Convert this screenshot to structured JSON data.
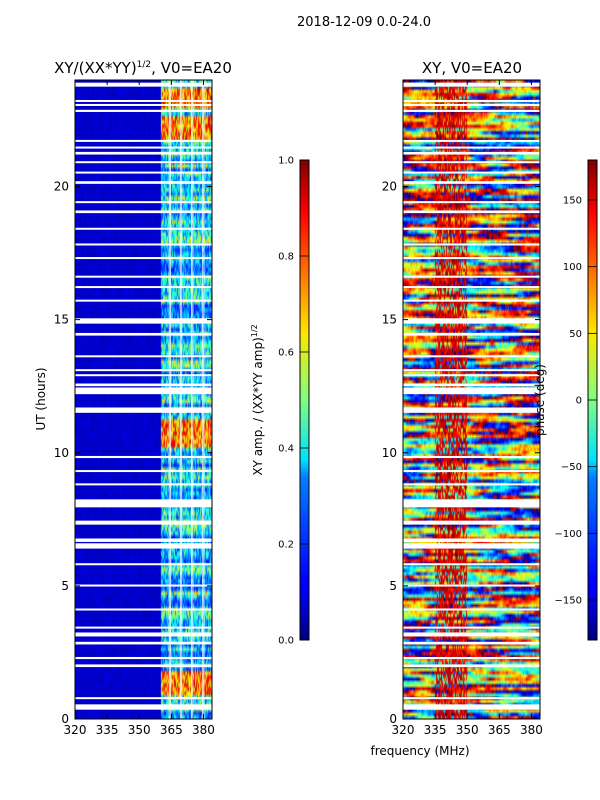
{
  "figure": {
    "suptitle": "2018-12-09 0.0-24.0",
    "xlabel": "frequency (MHz)"
  },
  "chart_data": [
    {
      "type": "heatmap",
      "title": "XY/(XX*YY)",
      "title_exponent": "1/2",
      "title_suffix": ", V0=EA20",
      "xlabel": "",
      "ylabel": "UT (hours)",
      "xlim": [
        320,
        384
      ],
      "ylim": [
        0,
        24
      ],
      "xticks": [
        320,
        335,
        350,
        365,
        380
      ],
      "yticks": [
        0,
        5,
        10,
        15,
        20
      ],
      "colorbar": {
        "label": "XY amp. / (XX*YY amp)",
        "label_exponent": "1/2",
        "range": [
          0.0,
          1.0
        ],
        "ticks": [
          "0.0",
          "0.2",
          "0.4",
          "0.6",
          "0.8",
          "1.0"
        ]
      },
      "features": {
        "active_band_mhz": [
          360,
          384
        ],
        "bright_time_windows_h": [
          [
            0.9,
            1.8
          ],
          [
            10.2,
            11.2
          ],
          [
            21.8,
            22.6
          ],
          [
            23.0,
            23.7
          ]
        ],
        "typical_value_low_band": 0.05,
        "typical_value_active_band": 0.35,
        "peak_value": 0.95
      }
    },
    {
      "type": "heatmap",
      "title": "XY, V0=EA20",
      "xlabel": "",
      "ylabel": "phase (deg)",
      "xlim": [
        320,
        384
      ],
      "ylim": [
        0,
        24
      ],
      "xticks": [
        320,
        335,
        350,
        365,
        380
      ],
      "yticks": [
        0,
        5,
        10,
        15,
        20
      ],
      "colorbar": {
        "label": "phase (deg)",
        "range": [
          -180,
          180
        ],
        "ticks": [
          "−150",
          "−100",
          "−50",
          "0",
          "50",
          "100",
          "150"
        ]
      },
      "features": {
        "dominant_value_band_mhz": [
          335,
          350
        ],
        "dominant_value_deg": 150,
        "background": "random phase -180..180"
      }
    }
  ],
  "gaps_ut_hours": [
    [
      0.35,
      0.55
    ],
    [
      0.75,
      0.82
    ],
    [
      1.95,
      2.05
    ],
    [
      2.25,
      2.33
    ],
    [
      2.8,
      2.9
    ],
    [
      3.1,
      3.25
    ],
    [
      3.4,
      3.47
    ],
    [
      4.1,
      4.15
    ],
    [
      5.0,
      5.05
    ],
    [
      5.8,
      5.85
    ],
    [
      6.4,
      6.6
    ],
    [
      6.65,
      6.78
    ],
    [
      7.3,
      7.45
    ],
    [
      7.95,
      8.25
    ],
    [
      8.8,
      8.85
    ],
    [
      9.3,
      9.35
    ],
    [
      9.8,
      9.88
    ],
    [
      11.5,
      11.7
    ],
    [
      12.2,
      12.45
    ],
    [
      12.5,
      12.6
    ],
    [
      12.9,
      12.95
    ],
    [
      13.1,
      13.14
    ],
    [
      13.6,
      13.66
    ],
    [
      14.4,
      14.5
    ],
    [
      14.85,
      15.05
    ],
    [
      15.7,
      15.75
    ],
    [
      16.2,
      16.26
    ],
    [
      16.6,
      16.65
    ],
    [
      17.3,
      17.35
    ],
    [
      17.8,
      17.86
    ],
    [
      18.4,
      18.45
    ],
    [
      19.0,
      19.1
    ],
    [
      19.4,
      19.45
    ],
    [
      20.1,
      20.2
    ],
    [
      20.5,
      20.56
    ],
    [
      20.9,
      20.95
    ],
    [
      21.2,
      21.3
    ],
    [
      21.45,
      21.5
    ],
    [
      21.7,
      21.75
    ],
    [
      22.8,
      22.88
    ],
    [
      23.05,
      23.1
    ],
    [
      23.2,
      23.25
    ],
    [
      23.75,
      23.9
    ]
  ],
  "sub_channel_gaps_mhz": [
    363.8,
    364.4,
    369.0,
    369.6,
    374.2,
    374.8,
    379.4,
    380.0
  ]
}
